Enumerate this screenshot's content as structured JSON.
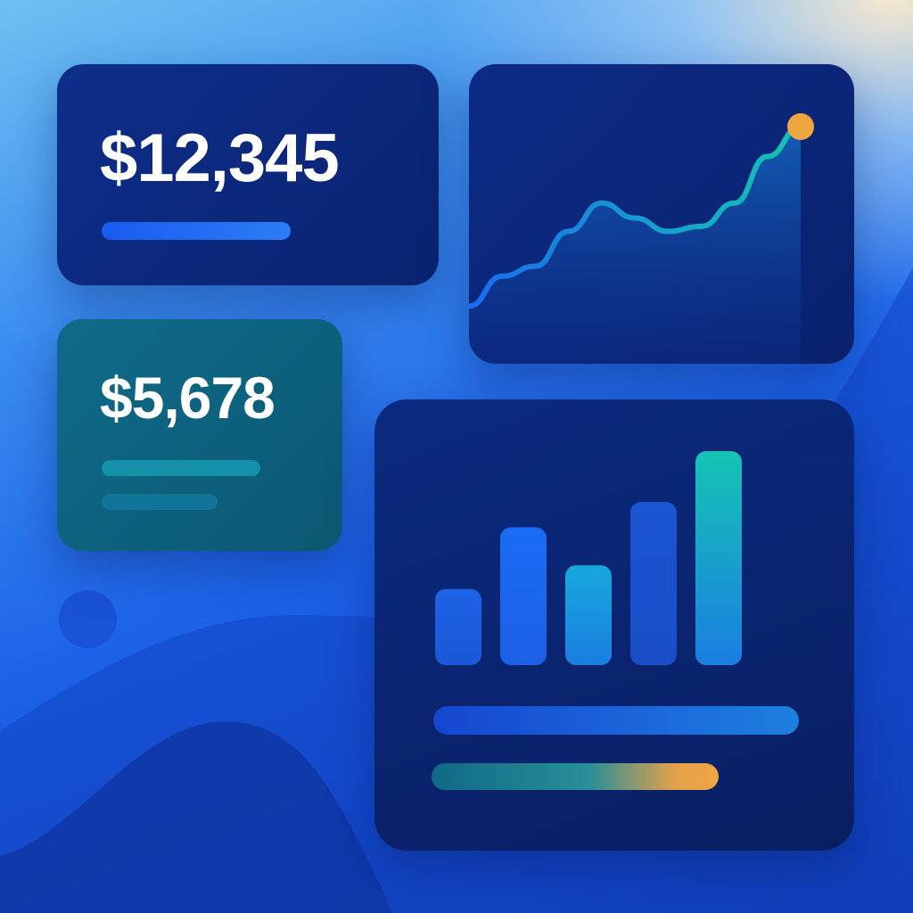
{
  "cards": {
    "balance": {
      "amount": "$12,345",
      "progress": 1.0
    },
    "secondary": {
      "amount": "$5,678"
    }
  },
  "chart_data": [
    {
      "type": "line",
      "x": [
        0,
        1,
        2,
        3,
        4,
        5,
        6,
        7,
        8,
        9,
        10
      ],
      "values": [
        10,
        28,
        34,
        55,
        72,
        63,
        55,
        58,
        72,
        100,
        118
      ],
      "highlight_last_point": true,
      "colors": {
        "line_start": "#1a6cf0",
        "line_end": "#14c4b0",
        "marker": "#f0a640"
      }
    },
    {
      "type": "bar",
      "values": [
        42,
        76,
        55,
        90,
        118
      ],
      "colors": [
        "#1d5fe0",
        "#1a6cf0",
        "#1aa6d8",
        "#1a55d0",
        "#16c2b8"
      ],
      "progress_bars": [
        1.0,
        1.0
      ]
    }
  ],
  "decorations": {
    "circle_color": "#1a52d6"
  }
}
